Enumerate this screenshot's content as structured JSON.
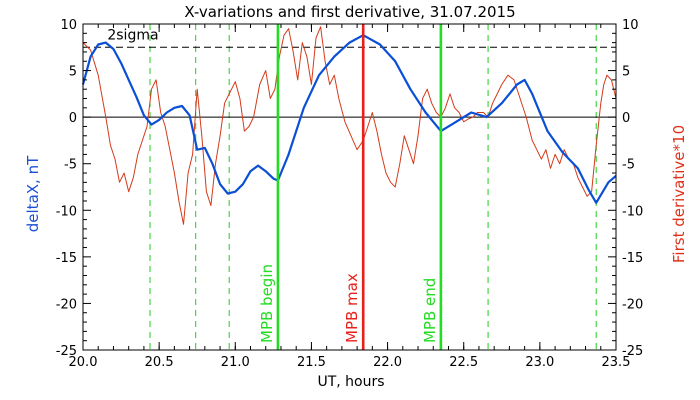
{
  "chart_data": {
    "type": "line",
    "title": "X-variations and first derivative, 31.07.2015",
    "xlabel": "UT, hours",
    "ylabel_left": "deltaX, nT",
    "ylabel_right": "First derivative*10",
    "xlim": [
      20.0,
      23.5
    ],
    "ylim": [
      -25,
      10
    ],
    "x_ticks": [
      "20.0",
      "20.5",
      "21.0",
      "21.5",
      "22.0",
      "22.5",
      "23.0",
      "23.5"
    ],
    "y_ticks": [
      "10",
      "5",
      "0",
      "-5",
      "-10",
      "-15",
      "-20",
      "-25"
    ],
    "sigma_label": "2sigma",
    "sigma_level": 7.5,
    "zero_level": 0,
    "colors": {
      "deltaX": "#0a4fd6",
      "derivative": "#d43a1a",
      "mpb_max": "#e8201a",
      "mpb_bounds": "#22dd22",
      "dashed_green": "#22cc22",
      "axis": "#000000",
      "ylabel_left": "#1a4fd6",
      "ylabel_right": "#e0301a"
    },
    "vlines": [
      {
        "x": 21.28,
        "label": "MPB begin",
        "kind": "bound"
      },
      {
        "x": 21.84,
        "label": "MPB max",
        "kind": "max"
      },
      {
        "x": 22.35,
        "label": "MPB end",
        "kind": "bound"
      }
    ],
    "green_dashed_x": [
      20.44,
      20.74,
      20.96,
      22.66,
      23.37
    ],
    "series": [
      {
        "name": "deltaX",
        "key": "deltaX",
        "points": [
          [
            20.0,
            3.5
          ],
          [
            20.05,
            6.5
          ],
          [
            20.1,
            7.8
          ],
          [
            20.15,
            8.0
          ],
          [
            20.2,
            7.3
          ],
          [
            20.25,
            5.8
          ],
          [
            20.3,
            4.0
          ],
          [
            20.35,
            2.2
          ],
          [
            20.4,
            0.2
          ],
          [
            20.45,
            -0.8
          ],
          [
            20.5,
            -0.3
          ],
          [
            20.55,
            0.5
          ],
          [
            20.6,
            1.0
          ],
          [
            20.65,
            1.2
          ],
          [
            20.7,
            0.2
          ],
          [
            20.75,
            -3.5
          ],
          [
            20.8,
            -3.3
          ],
          [
            20.85,
            -5.0
          ],
          [
            20.9,
            -7.2
          ],
          [
            20.95,
            -8.2
          ],
          [
            21.0,
            -8.0
          ],
          [
            21.05,
            -7.2
          ],
          [
            21.1,
            -5.8
          ],
          [
            21.15,
            -5.2
          ],
          [
            21.2,
            -5.8
          ],
          [
            21.25,
            -6.6
          ],
          [
            21.28,
            -6.8
          ],
          [
            21.35,
            -4.0
          ],
          [
            21.45,
            1.0
          ],
          [
            21.55,
            4.5
          ],
          [
            21.65,
            6.5
          ],
          [
            21.75,
            8.0
          ],
          [
            21.84,
            8.8
          ],
          [
            21.95,
            7.8
          ],
          [
            22.05,
            6.0
          ],
          [
            22.15,
            3.0
          ],
          [
            22.25,
            0.5
          ],
          [
            22.35,
            -1.5
          ],
          [
            22.45,
            -0.5
          ],
          [
            22.55,
            0.5
          ],
          [
            22.65,
            0.0
          ],
          [
            22.75,
            1.5
          ],
          [
            22.85,
            3.5
          ],
          [
            22.9,
            4.0
          ],
          [
            22.95,
            2.5
          ],
          [
            23.05,
            -1.5
          ],
          [
            23.15,
            -3.8
          ],
          [
            23.25,
            -5.5
          ],
          [
            23.32,
            -7.8
          ],
          [
            23.37,
            -9.2
          ],
          [
            23.45,
            -7.0
          ],
          [
            23.5,
            -6.3
          ]
        ]
      },
      {
        "name": "First derivative*10",
        "key": "derivative",
        "points": [
          [
            20.0,
            8.0
          ],
          [
            20.05,
            7.2
          ],
          [
            20.1,
            4.5
          ],
          [
            20.15,
            0.0
          ],
          [
            20.18,
            -3.0
          ],
          [
            20.21,
            -4.5
          ],
          [
            20.24,
            -7.0
          ],
          [
            20.27,
            -6.0
          ],
          [
            20.3,
            -8.0
          ],
          [
            20.33,
            -6.5
          ],
          [
            20.36,
            -4.0
          ],
          [
            20.39,
            -2.5
          ],
          [
            20.42,
            -1.0
          ],
          [
            20.45,
            3.0
          ],
          [
            20.48,
            4.0
          ],
          [
            20.51,
            0.5
          ],
          [
            20.54,
            -1.0
          ],
          [
            20.57,
            -3.5
          ],
          [
            20.6,
            -6.0
          ],
          [
            20.63,
            -9.0
          ],
          [
            20.66,
            -11.5
          ],
          [
            20.69,
            -6.0
          ],
          [
            20.72,
            -4.0
          ],
          [
            20.75,
            3.0
          ],
          [
            20.78,
            -2.0
          ],
          [
            20.81,
            -8.0
          ],
          [
            20.84,
            -9.5
          ],
          [
            20.87,
            -5.0
          ],
          [
            20.9,
            -2.0
          ],
          [
            20.93,
            1.5
          ],
          [
            20.96,
            2.5
          ],
          [
            21.0,
            3.8
          ],
          [
            21.03,
            2.0
          ],
          [
            21.06,
            -1.5
          ],
          [
            21.09,
            -1.0
          ],
          [
            21.12,
            0.0
          ],
          [
            21.16,
            3.5
          ],
          [
            21.2,
            5.0
          ],
          [
            21.23,
            2.0
          ],
          [
            21.26,
            3.0
          ],
          [
            21.29,
            6.5
          ],
          [
            21.32,
            8.8
          ],
          [
            21.35,
            9.5
          ],
          [
            21.38,
            7.0
          ],
          [
            21.41,
            4.0
          ],
          [
            21.44,
            8.0
          ],
          [
            21.47,
            6.5
          ],
          [
            21.5,
            3.5
          ],
          [
            21.53,
            8.5
          ],
          [
            21.56,
            9.7
          ],
          [
            21.59,
            6.0
          ],
          [
            21.62,
            3.5
          ],
          [
            21.65,
            4.5
          ],
          [
            21.68,
            2.0
          ],
          [
            21.72,
            -0.5
          ],
          [
            21.76,
            -2.0
          ],
          [
            21.8,
            -3.5
          ],
          [
            21.84,
            -2.5
          ],
          [
            21.87,
            -1.0
          ],
          [
            21.9,
            0.5
          ],
          [
            21.93,
            -1.5
          ],
          [
            21.96,
            -4.0
          ],
          [
            21.99,
            -6.0
          ],
          [
            22.02,
            -7.0
          ],
          [
            22.05,
            -7.5
          ],
          [
            22.08,
            -5.0
          ],
          [
            22.11,
            -2.0
          ],
          [
            22.14,
            -3.5
          ],
          [
            22.17,
            -5.0
          ],
          [
            22.2,
            -2.0
          ],
          [
            22.23,
            2.0
          ],
          [
            22.26,
            3.0
          ],
          [
            22.29,
            1.5
          ],
          [
            22.32,
            0.5
          ],
          [
            22.35,
            0.0
          ],
          [
            22.38,
            1.0
          ],
          [
            22.41,
            2.5
          ],
          [
            22.44,
            1.0
          ],
          [
            22.47,
            0.5
          ],
          [
            22.5,
            -0.5
          ],
          [
            22.53,
            -0.2
          ],
          [
            22.56,
            0.0
          ],
          [
            22.59,
            0.5
          ],
          [
            22.63,
            0.5
          ],
          [
            22.66,
            0.0
          ],
          [
            22.69,
            1.5
          ],
          [
            22.72,
            2.5
          ],
          [
            22.75,
            3.5
          ],
          [
            22.79,
            4.5
          ],
          [
            22.83,
            4.0
          ],
          [
            22.87,
            2.0
          ],
          [
            22.91,
            0.0
          ],
          [
            22.95,
            -2.5
          ],
          [
            22.98,
            -3.5
          ],
          [
            23.01,
            -4.5
          ],
          [
            23.04,
            -3.5
          ],
          [
            23.07,
            -5.5
          ],
          [
            23.1,
            -4.0
          ],
          [
            23.13,
            -5.0
          ],
          [
            23.16,
            -3.5
          ],
          [
            23.19,
            -4.5
          ],
          [
            23.22,
            -5.0
          ],
          [
            23.25,
            -6.5
          ],
          [
            23.28,
            -7.5
          ],
          [
            23.31,
            -8.5
          ],
          [
            23.34,
            -8.0
          ],
          [
            23.37,
            -3.0
          ],
          [
            23.4,
            1.5
          ],
          [
            23.42,
            3.5
          ],
          [
            23.44,
            4.5
          ],
          [
            23.47,
            4.0
          ],
          [
            23.5,
            2.0
          ]
        ]
      }
    ]
  }
}
